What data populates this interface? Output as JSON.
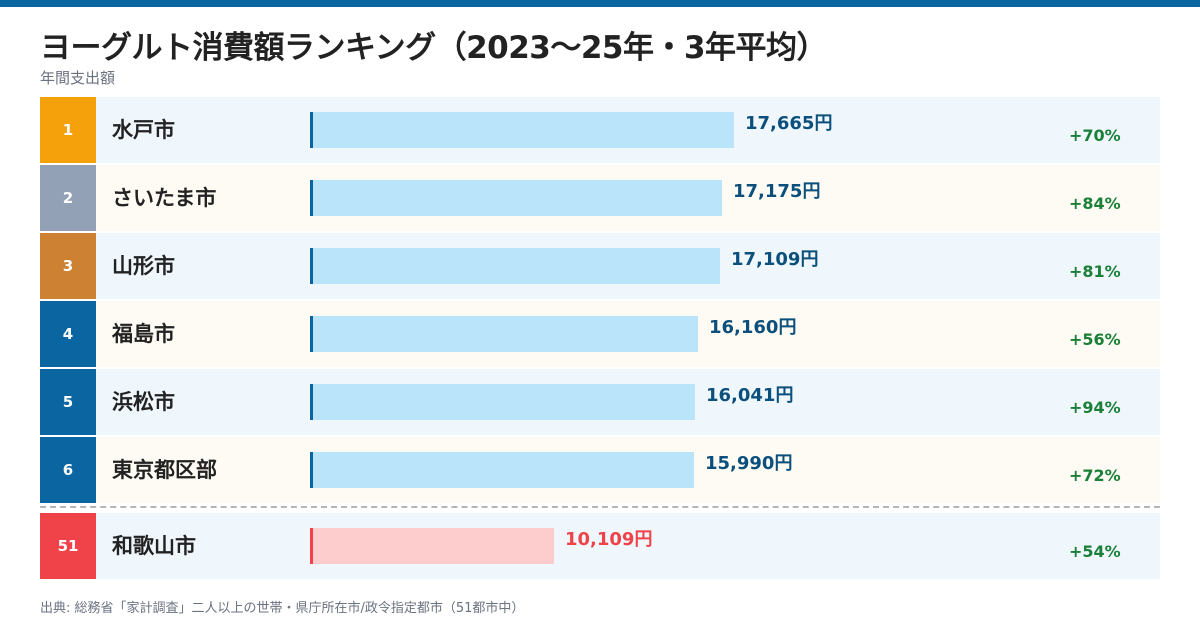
{
  "title": "ヨーグルト消費額ランキング（2023〜25年・3年平均）",
  "subtitle": "年間支出額",
  "source": "出典: 総務省「家計調査」二人以上の世帯・県庁所在市/政令指定都市（51都市中）",
  "colors": {
    "rank_gold": "#f4a10c",
    "rank_silver": "#93a1b6",
    "rank_bronze": "#cd8133",
    "rank_default": "#0b65a0",
    "rank_highlight": "#ef4249",
    "bar_fill": "#bae4fa",
    "bar_accent": "#0b65a0",
    "bar_fill_highlight": "#fdcccc",
    "bar_accent_highlight": "#ef4249",
    "value_text": "#0b4f7c",
    "value_text_highlight": "#ef4249",
    "growth_text": "#1a7f37"
  },
  "chart_data": {
    "type": "bar",
    "orientation": "horizontal",
    "title": "ヨーグルト消費額ランキング（2023〜25年・3年平均）",
    "subtitle": "年間支出額",
    "unit": "円",
    "xlim": [
      0,
      21000
    ],
    "rows": [
      {
        "rank": "1",
        "city": "水戸市",
        "value": 17665,
        "label": "17,665円",
        "growth": "+70%",
        "rank_color": "rank_gold",
        "highlight": false
      },
      {
        "rank": "2",
        "city": "さいたま市",
        "value": 17175,
        "label": "17,175円",
        "growth": "+84%",
        "rank_color": "rank_silver",
        "highlight": false
      },
      {
        "rank": "3",
        "city": "山形市",
        "value": 17109,
        "label": "17,109円",
        "growth": "+81%",
        "rank_color": "rank_bronze",
        "highlight": false
      },
      {
        "rank": "4",
        "city": "福島市",
        "value": 16160,
        "label": "16,160円",
        "growth": "+56%",
        "rank_color": "rank_default",
        "highlight": false
      },
      {
        "rank": "5",
        "city": "浜松市",
        "value": 16041,
        "label": "16,041円",
        "growth": "+94%",
        "rank_color": "rank_default",
        "highlight": false
      },
      {
        "rank": "6",
        "city": "東京都区部",
        "value": 15990,
        "label": "15,990円",
        "growth": "+72%",
        "rank_color": "rank_default",
        "highlight": false
      },
      {
        "rank": "51",
        "city": "和歌山市",
        "value": 10109,
        "label": "10,109円",
        "growth": "+54%",
        "rank_color": "rank_highlight",
        "highlight": true
      }
    ]
  }
}
